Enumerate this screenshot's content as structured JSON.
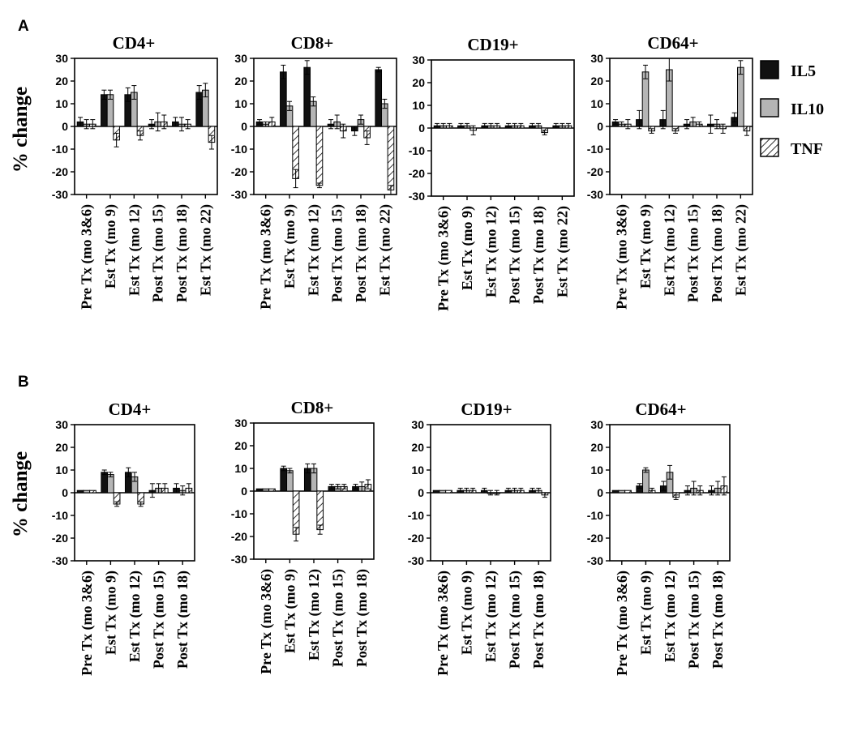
{
  "figure": {
    "ylabel": "% change",
    "legend": [
      {
        "name": "IL5",
        "fill": "#111111",
        "pattern": "solid"
      },
      {
        "name": "IL10",
        "fill": "#b5b5b5",
        "pattern": "solid"
      },
      {
        "name": "TNF",
        "fill": "#ffffff",
        "pattern": "hatch"
      }
    ]
  },
  "chart_data": [
    {
      "panel": "A",
      "title": "CD4+",
      "type": "bar",
      "ylim": [
        -30,
        30
      ],
      "yticks": [
        30,
        20,
        10,
        0,
        -10,
        -20,
        -30
      ],
      "categories": [
        "Pre Tx (mo 3&6)",
        "Est Tx (mo 9)",
        "Est Tx (mo 12)",
        "Post Tx (mo 15)",
        "Post Tx (mo 18)",
        "Est Tx (mo 22)"
      ],
      "series": [
        {
          "name": "IL5",
          "values": [
            2,
            14,
            14,
            1,
            2,
            15
          ],
          "errors": [
            2,
            2,
            3,
            2,
            2,
            3
          ]
        },
        {
          "name": "IL10",
          "values": [
            1,
            14,
            15,
            2,
            1,
            16
          ],
          "errors": [
            2,
            2,
            3,
            4,
            3,
            3
          ]
        },
        {
          "name": "TNF",
          "values": [
            1,
            -6,
            -4,
            2,
            1,
            -7
          ],
          "errors": [
            2,
            3,
            2,
            3,
            2,
            3
          ]
        }
      ]
    },
    {
      "panel": "A",
      "title": "CD8+",
      "type": "bar",
      "ylim": [
        -30,
        30
      ],
      "yticks": [
        30,
        20,
        10,
        0,
        -10,
        -20,
        -30
      ],
      "categories": [
        "Pre Tx (mo 3&6)",
        "Est Tx (mo 9)",
        "Est Tx (mo 12)",
        "Post Tx (mo 15)",
        "Post Tx (mo 18)",
        "Est Tx (mo 22)"
      ],
      "series": [
        {
          "name": "IL5",
          "values": [
            2,
            24,
            26,
            1,
            -2,
            25
          ],
          "errors": [
            1,
            3,
            3,
            2,
            2,
            1
          ]
        },
        {
          "name": "IL10",
          "values": [
            1,
            9,
            11,
            2,
            3,
            10
          ],
          "errors": [
            1,
            2,
            2,
            3,
            2,
            2
          ]
        },
        {
          "name": "TNF",
          "values": [
            2,
            -23,
            -26,
            -2,
            -5,
            -28
          ],
          "errors": [
            2,
            4,
            1,
            3,
            3,
            2
          ]
        }
      ]
    },
    {
      "panel": "A",
      "title": "CD19+",
      "type": "bar",
      "ylim": [
        -30,
        30
      ],
      "yticks": [
        30,
        20,
        10,
        0,
        -10,
        -20,
        -30
      ],
      "categories": [
        "Pre Tx (mo 3&6)",
        "Est Tx (mo 9)",
        "Est Tx (mo 12)",
        "Post Tx (mo 15)",
        "Post Tx (mo 18)",
        "Est Tx (mo 22)"
      ],
      "series": [
        {
          "name": "IL5",
          "values": [
            1,
            1,
            1,
            1,
            1,
            1
          ],
          "errors": [
            1,
            1,
            1,
            1,
            1,
            1
          ]
        },
        {
          "name": "IL10",
          "values": [
            1,
            1,
            1,
            1,
            1,
            1
          ],
          "errors": [
            1,
            1,
            1,
            1,
            1,
            1
          ]
        },
        {
          "name": "TNF",
          "values": [
            1,
            -1,
            1,
            1,
            -2,
            1
          ],
          "errors": [
            1,
            2,
            1,
            1,
            1,
            1
          ]
        }
      ]
    },
    {
      "panel": "A",
      "title": "CD64+",
      "type": "bar",
      "ylim": [
        -30,
        30
      ],
      "yticks": [
        30,
        20,
        10,
        0,
        -10,
        -20,
        -30
      ],
      "categories": [
        "Pre Tx (mo 3&6)",
        "Est Tx (mo 9)",
        "Est Tx (mo 12)",
        "Post Tx (mo 15)",
        "Post Tx (mo 18)",
        "Est Tx (mo 22)"
      ],
      "series": [
        {
          "name": "IL5",
          "values": [
            2,
            3,
            3,
            1,
            1,
            4
          ],
          "errors": [
            1,
            4,
            4,
            2,
            4,
            2
          ]
        },
        {
          "name": "IL10",
          "values": [
            1,
            24,
            25,
            2,
            1,
            26
          ],
          "errors": [
            1,
            3,
            5,
            2,
            2,
            3
          ]
        },
        {
          "name": "TNF",
          "values": [
            1,
            -2,
            -2,
            1,
            -1,
            -2
          ],
          "errors": [
            2,
            1,
            1,
            1,
            2,
            2
          ]
        }
      ]
    },
    {
      "panel": "B",
      "title": "CD4+",
      "type": "bar",
      "ylim": [
        -30,
        30
      ],
      "yticks": [
        30,
        20,
        10,
        0,
        -10,
        -20,
        -30
      ],
      "categories": [
        "Pre Tx (mo 3&6)",
        "Est Tx (mo 9)",
        "Est Tx (mo 12)",
        "Post Tx (mo 15)",
        "Post Tx (mo 18)"
      ],
      "series": [
        {
          "name": "IL5",
          "values": [
            1,
            9,
            9,
            1,
            2
          ],
          "errors": [
            0,
            1,
            2,
            3,
            2
          ]
        },
        {
          "name": "IL10",
          "values": [
            1,
            8,
            7,
            2,
            1
          ],
          "errors": [
            0,
            1,
            2,
            2,
            2
          ]
        },
        {
          "name": "TNF",
          "values": [
            1,
            -5,
            -5,
            2,
            2
          ],
          "errors": [
            0,
            1,
            1,
            2,
            2
          ]
        }
      ]
    },
    {
      "panel": "B",
      "title": "CD8+",
      "type": "bar",
      "ylim": [
        -30,
        30
      ],
      "yticks": [
        30,
        20,
        10,
        0,
        -10,
        -20,
        -30
      ],
      "categories": [
        "Pre Tx (mo 3&6)",
        "Est Tx (mo 9)",
        "Est Tx (mo 12)",
        "Post Tx (mo 15)",
        "Post Tx (mo 18)"
      ],
      "series": [
        {
          "name": "IL5",
          "values": [
            1,
            10,
            10,
            2,
            2
          ],
          "errors": [
            0,
            1,
            2,
            1,
            1
          ]
        },
        {
          "name": "IL10",
          "values": [
            1,
            9,
            10,
            2,
            2
          ],
          "errors": [
            0,
            1,
            2,
            1,
            2
          ]
        },
        {
          "name": "TNF",
          "values": [
            1,
            -19,
            -17,
            2,
            3
          ],
          "errors": [
            0,
            3,
            2,
            1,
            2
          ]
        }
      ]
    },
    {
      "panel": "B",
      "title": "CD19+",
      "type": "bar",
      "ylim": [
        -30,
        30
      ],
      "yticks": [
        30,
        20,
        10,
        0,
        -10,
        -20,
        -30
      ],
      "categories": [
        "Pre Tx (mo 3&6)",
        "Est Tx (mo 9)",
        "Est Tx (mo 12)",
        "Post Tx (mo 15)",
        "Post Tx (mo 18)"
      ],
      "series": [
        {
          "name": "IL5",
          "values": [
            1,
            1,
            1,
            1,
            1
          ],
          "errors": [
            0,
            1,
            1,
            1,
            1
          ]
        },
        {
          "name": "IL10",
          "values": [
            1,
            1,
            0,
            1,
            1
          ],
          "errors": [
            0,
            1,
            1,
            1,
            1
          ]
        },
        {
          "name": "TNF",
          "values": [
            1,
            1,
            0,
            1,
            -1
          ],
          "errors": [
            0,
            1,
            1,
            1,
            1
          ]
        }
      ]
    },
    {
      "panel": "B",
      "title": "CD64+",
      "type": "bar",
      "ylim": [
        -30,
        30
      ],
      "yticks": [
        30,
        20,
        10,
        0,
        -10,
        -20,
        -30
      ],
      "categories": [
        "Pre Tx (mo 3&6)",
        "Est Tx (mo 9)",
        "Est Tx (mo 12)",
        "Post Tx (mo 15)",
        "Post Tx (mo 18)"
      ],
      "series": [
        {
          "name": "IL5",
          "values": [
            1,
            3,
            3,
            1,
            1
          ],
          "errors": [
            0,
            1,
            2,
            2,
            2
          ]
        },
        {
          "name": "IL10",
          "values": [
            1,
            10,
            9,
            2,
            2
          ],
          "errors": [
            0,
            1,
            3,
            3,
            3
          ]
        },
        {
          "name": "TNF",
          "values": [
            1,
            1,
            -2,
            1,
            3
          ],
          "errors": [
            0,
            1,
            1,
            2,
            4
          ]
        }
      ]
    }
  ]
}
